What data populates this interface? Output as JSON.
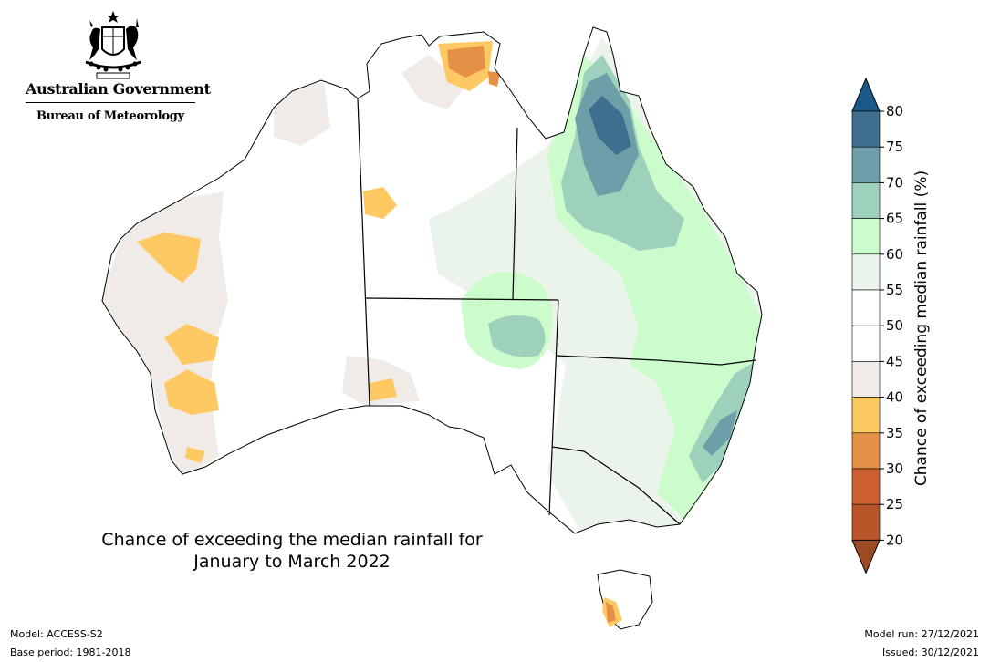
{
  "header": {
    "government": "Australian Government",
    "bureau": "Bureau of Meteorology",
    "crest_icon": "commonwealth-coat-of-arms-icon"
  },
  "map": {
    "title_line1": "Chance of exceeding the median rainfall for",
    "title_line2": "January to March 2022"
  },
  "legend": {
    "label": "Chance of exceeding median rainfall (%)",
    "ticks": [
      "80",
      "75",
      "70",
      "65",
      "60",
      "55",
      "50",
      "45",
      "40",
      "35",
      "30",
      "25",
      "20"
    ],
    "bands": [
      {
        "range": "75-80",
        "color": "#3f6f8f"
      },
      {
        "range": "70-75",
        "color": "#6d9fa8"
      },
      {
        "range": "65-70",
        "color": "#9dd1bb"
      },
      {
        "range": "60-65",
        "color": "#ccfccc"
      },
      {
        "range": "55-60",
        "color": "#ebf4eb"
      },
      {
        "range": "50-55",
        "color": "#ffffff"
      },
      {
        "range": "45-50",
        "color": "#ffffff"
      },
      {
        "range": "40-45",
        "color": "#f0ebe6"
      },
      {
        "range": "35-40",
        "color": "#fec963"
      },
      {
        "range": "30-35",
        "color": "#e49046"
      },
      {
        "range": "25-30",
        "color": "#cc6030"
      },
      {
        "range": "20-25",
        "color": "#b8562a"
      }
    ],
    "above_color": "#1a5a8a",
    "below_color": "#9c4a24"
  },
  "footer": {
    "model": "Model: ACCESS-S2",
    "base_period": "Base period: 1981-2018",
    "model_run": "Model run: 27/12/2021",
    "issued": "Issued: 30/12/2021"
  }
}
